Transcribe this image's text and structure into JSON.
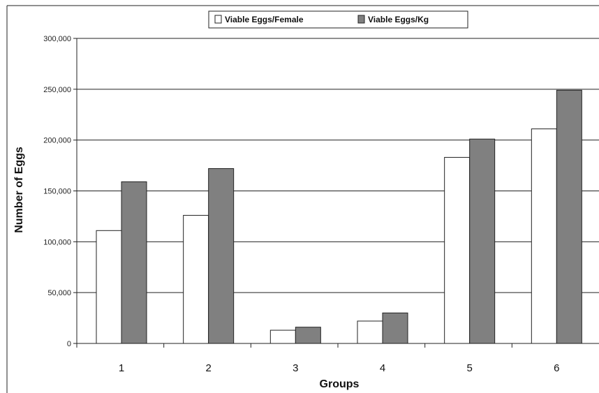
{
  "chart_data": {
    "type": "bar",
    "categories": [
      "1",
      "2",
      "3",
      "4",
      "5",
      "6"
    ],
    "series": [
      {
        "name": "Viable Eggs/Female",
        "values": [
          111000,
          126000,
          13000,
          22000,
          183000,
          211000
        ],
        "color": "#ffffff"
      },
      {
        "name": "Viable Eggs/Kg",
        "values": [
          159000,
          172000,
          16000,
          30000,
          201000,
          249000
        ],
        "color": "#808080"
      }
    ],
    "xlabel": "Groups",
    "ylabel": "Number of Eggs",
    "ylim": [
      0,
      300000
    ],
    "yticks": [
      0,
      50000,
      100000,
      150000,
      200000,
      250000,
      300000
    ],
    "ytick_labels": [
      "0",
      "50,000",
      "100,000",
      "150,000",
      "200,000",
      "250,000",
      "300,000"
    ],
    "grid": true,
    "legend_position": "top-center"
  }
}
